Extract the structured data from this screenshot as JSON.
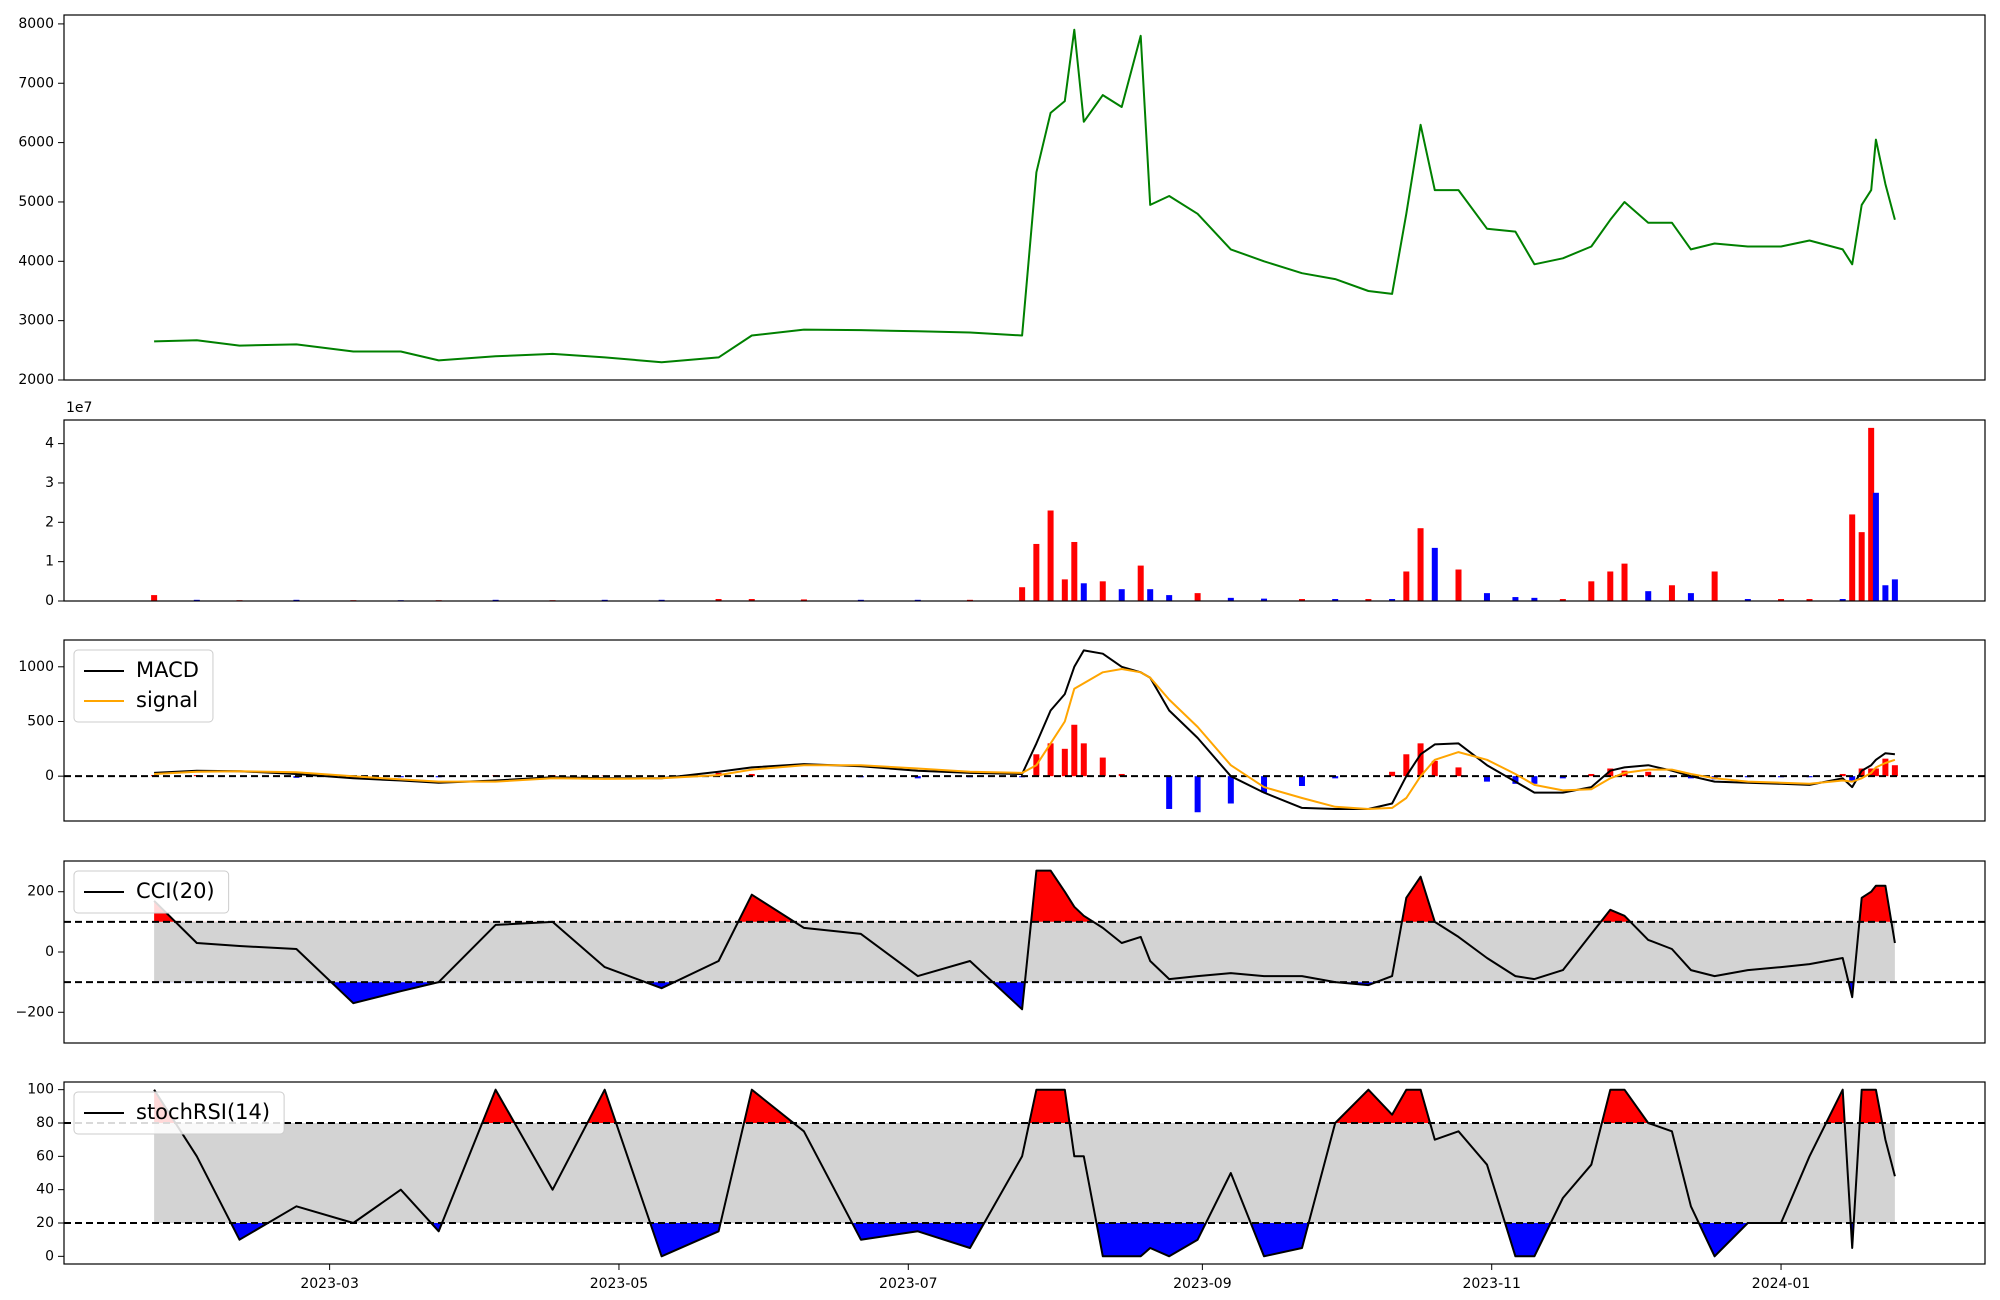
{
  "chart_data": [
    {
      "type": "line",
      "x": [
        "2023-01-23",
        "2023-02-01",
        "2023-02-10",
        "2023-02-22",
        "2023-03-06",
        "2023-03-16",
        "2023-03-24",
        "2023-04-05",
        "2023-04-17",
        "2023-04-28",
        "2023-05-10",
        "2023-05-22",
        "2023-05-29",
        "2023-06-09",
        "2023-06-21",
        "2023-07-03",
        "2023-07-14",
        "2023-07-25",
        "2023-07-28",
        "2023-07-31",
        "2023-08-03",
        "2023-08-05",
        "2023-08-07",
        "2023-08-11",
        "2023-08-15",
        "2023-08-19",
        "2023-08-21",
        "2023-08-25",
        "2023-08-31",
        "2023-09-07",
        "2023-09-14",
        "2023-09-22",
        "2023-09-29",
        "2023-10-06",
        "2023-10-11",
        "2023-10-14",
        "2023-10-17",
        "2023-10-20",
        "2023-10-25",
        "2023-10-31",
        "2023-11-06",
        "2023-11-10",
        "2023-11-16",
        "2023-11-22",
        "2023-11-26",
        "2023-11-29",
        "2023-12-04",
        "2023-12-09",
        "2023-12-13",
        "2023-12-18",
        "2023-12-25",
        "2024-01-01",
        "2024-01-07",
        "2024-01-14",
        "2024-01-16",
        "2024-01-18",
        "2024-01-20",
        "2024-01-21",
        "2024-01-23",
        "2024-01-25"
      ],
      "series": [
        {
          "color": "green",
          "values": [
            2650,
            2670,
            2580,
            2600,
            2480,
            2480,
            2330,
            2400,
            2440,
            2380,
            2300,
            2380,
            2750,
            2850,
            2840,
            2820,
            2800,
            2750,
            5500,
            6500,
            6700,
            7900,
            6350,
            6800,
            6600,
            7800,
            4950,
            5100,
            4800,
            4200,
            4000,
            3800,
            3700,
            3500,
            3450,
            4800,
            6300,
            5200,
            5200,
            4550,
            4500,
            3950,
            4050,
            4250,
            4700,
            5000,
            4650,
            4650,
            4200,
            4300,
            4250,
            4250,
            4350,
            4200,
            3950,
            4950,
            5200,
            6050,
            5300,
            4700
          ]
        }
      ],
      "xlim": [
        "2023-01-04",
        "2024-02-13"
      ],
      "ylim": [
        2000,
        8150
      ],
      "yticks": [
        2000,
        3000,
        4000,
        5000,
        6000,
        7000,
        8000
      ]
    },
    {
      "type": "bar",
      "x": [
        "2023-01-23",
        "2023-02-01",
        "2023-02-10",
        "2023-02-22",
        "2023-03-06",
        "2023-03-16",
        "2023-03-24",
        "2023-04-05",
        "2023-04-17",
        "2023-04-28",
        "2023-05-10",
        "2023-05-22",
        "2023-05-29",
        "2023-06-09",
        "2023-06-21",
        "2023-07-03",
        "2023-07-14",
        "2023-07-25",
        "2023-07-28",
        "2023-07-31",
        "2023-08-03",
        "2023-08-05",
        "2023-08-07",
        "2023-08-11",
        "2023-08-15",
        "2023-08-19",
        "2023-08-21",
        "2023-08-25",
        "2023-08-31",
        "2023-09-07",
        "2023-09-14",
        "2023-09-22",
        "2023-09-29",
        "2023-10-06",
        "2023-10-11",
        "2023-10-14",
        "2023-10-17",
        "2023-10-20",
        "2023-10-25",
        "2023-10-31",
        "2023-11-06",
        "2023-11-10",
        "2023-11-16",
        "2023-11-22",
        "2023-11-26",
        "2023-11-29",
        "2023-12-04",
        "2023-12-09",
        "2023-12-13",
        "2023-12-18",
        "2023-12-25",
        "2024-01-01",
        "2024-01-07",
        "2024-01-14",
        "2024-01-16",
        "2024-01-18",
        "2024-01-20",
        "2024-01-21",
        "2024-01-23",
        "2024-01-25"
      ],
      "values": [
        0.15,
        0.03,
        0.02,
        0.03,
        0.02,
        0.02,
        0.02,
        0.03,
        0.02,
        0.03,
        0.03,
        0.05,
        0.05,
        0.04,
        0.03,
        0.03,
        0.03,
        0.35,
        1.45,
        2.3,
        0.55,
        1.5,
        0.45,
        0.5,
        0.3,
        0.9,
        0.3,
        0.15,
        0.2,
        0.08,
        0.06,
        0.05,
        0.05,
        0.05,
        0.05,
        0.75,
        1.85,
        1.35,
        0.8,
        0.2,
        0.1,
        0.08,
        0.05,
        0.5,
        0.75,
        0.95,
        0.25,
        0.4,
        0.2,
        0.75,
        0.05,
        0.05,
        0.05,
        0.05,
        2.2,
        1.75,
        4.4,
        2.75,
        0.4,
        0.55
      ],
      "colors": [
        "red",
        "blue",
        "red",
        "blue",
        "red",
        "blue",
        "red",
        "blue",
        "red",
        "blue",
        "blue",
        "red",
        "red",
        "red",
        "blue",
        "blue",
        "red",
        "red",
        "red",
        "red",
        "red",
        "red",
        "blue",
        "red",
        "blue",
        "red",
        "blue",
        "blue",
        "red",
        "blue",
        "blue",
        "red",
        "blue",
        "red",
        "blue",
        "red",
        "red",
        "blue",
        "red",
        "blue",
        "blue",
        "blue",
        "red",
        "red",
        "red",
        "red",
        "blue",
        "red",
        "blue",
        "red",
        "blue",
        "red",
        "red",
        "blue",
        "red",
        "red",
        "red",
        "blue",
        "blue",
        "blue"
      ],
      "y_offset_label": "1e7",
      "xlim": [
        "2023-01-04",
        "2024-02-13"
      ],
      "ylim": [
        0,
        4.6
      ],
      "yticks": [
        0,
        1,
        2,
        3,
        4
      ]
    },
    {
      "type": "line",
      "x": [
        "2023-01-23",
        "2023-02-01",
        "2023-02-10",
        "2023-02-22",
        "2023-03-06",
        "2023-03-16",
        "2023-03-24",
        "2023-04-05",
        "2023-04-17",
        "2023-04-28",
        "2023-05-10",
        "2023-05-22",
        "2023-05-29",
        "2023-06-09",
        "2023-06-21",
        "2023-07-03",
        "2023-07-14",
        "2023-07-25",
        "2023-07-28",
        "2023-07-31",
        "2023-08-03",
        "2023-08-05",
        "2023-08-07",
        "2023-08-11",
        "2023-08-15",
        "2023-08-19",
        "2023-08-21",
        "2023-08-25",
        "2023-08-31",
        "2023-09-07",
        "2023-09-14",
        "2023-09-22",
        "2023-09-29",
        "2023-10-06",
        "2023-10-11",
        "2023-10-14",
        "2023-10-17",
        "2023-10-20",
        "2023-10-25",
        "2023-10-31",
        "2023-11-06",
        "2023-11-10",
        "2023-11-16",
        "2023-11-22",
        "2023-11-26",
        "2023-11-29",
        "2023-12-04",
        "2023-12-09",
        "2023-12-13",
        "2023-12-18",
        "2023-12-25",
        "2024-01-01",
        "2024-01-07",
        "2024-01-14",
        "2024-01-16",
        "2024-01-18",
        "2024-01-20",
        "2024-01-21",
        "2024-01-23",
        "2024-01-25"
      ],
      "series": [
        {
          "name": "MACD",
          "color": "black",
          "values": [
            30,
            50,
            45,
            20,
            -20,
            -40,
            -60,
            -40,
            -10,
            -20,
            -20,
            40,
            80,
            110,
            90,
            50,
            30,
            20,
            300,
            600,
            750,
            1000,
            1150,
            1120,
            1000,
            950,
            900,
            600,
            350,
            0,
            -150,
            -290,
            -300,
            -300,
            -250,
            0,
            200,
            290,
            300,
            100,
            -50,
            -150,
            -150,
            -100,
            50,
            80,
            100,
            50,
            0,
            -50,
            -60,
            -70,
            -80,
            -20,
            -100,
            50,
            100,
            150,
            210,
            200
          ]
        },
        {
          "name": "signal",
          "color": "orange",
          "values": [
            20,
            40,
            45,
            35,
            0,
            -30,
            -50,
            -50,
            -20,
            -25,
            -20,
            10,
            60,
            100,
            100,
            70,
            40,
            30,
            100,
            300,
            500,
            800,
            850,
            950,
            980,
            950,
            900,
            700,
            450,
            100,
            -100,
            -200,
            -280,
            -300,
            -290,
            -200,
            0,
            150,
            220,
            150,
            20,
            -80,
            -130,
            -120,
            -20,
            30,
            60,
            60,
            20,
            -20,
            -50,
            -60,
            -70,
            -40,
            -50,
            -20,
            30,
            80,
            120,
            150
          ]
        }
      ],
      "bars": {
        "pos_color": "red",
        "neg_color": "blue",
        "values": [
          10,
          10,
          0,
          -15,
          -20,
          -10,
          -10,
          10,
          10,
          5,
          0,
          30,
          20,
          10,
          -10,
          -20,
          -10,
          -10,
          200,
          300,
          250,
          470,
          300,
          170,
          20,
          0,
          0,
          -300,
          -330,
          -250,
          -150,
          -90,
          -20,
          0,
          40,
          200,
          300,
          140,
          80,
          -50,
          -70,
          -70,
          -20,
          20,
          70,
          50,
          40,
          -10,
          -20,
          -30,
          -10,
          -10,
          -10,
          20,
          -50,
          70,
          70,
          70,
          160,
          100
        ]
      },
      "hlines": [
        0
      ],
      "legend": "upper left",
      "xlim": [
        "2023-01-04",
        "2024-02-13"
      ],
      "ylim": [
        -410,
        1245
      ],
      "yticks": [
        0,
        500,
        1000
      ]
    },
    {
      "type": "line",
      "x": [
        "2023-01-23",
        "2023-02-01",
        "2023-02-10",
        "2023-02-22",
        "2023-03-06",
        "2023-03-16",
        "2023-03-24",
        "2023-04-05",
        "2023-04-17",
        "2023-04-28",
        "2023-05-10",
        "2023-05-22",
        "2023-05-29",
        "2023-06-09",
        "2023-06-21",
        "2023-07-03",
        "2023-07-14",
        "2023-07-25",
        "2023-07-28",
        "2023-07-31",
        "2023-08-03",
        "2023-08-05",
        "2023-08-07",
        "2023-08-11",
        "2023-08-15",
        "2023-08-19",
        "2023-08-21",
        "2023-08-25",
        "2023-08-31",
        "2023-09-07",
        "2023-09-14",
        "2023-09-22",
        "2023-09-29",
        "2023-10-06",
        "2023-10-11",
        "2023-10-14",
        "2023-10-17",
        "2023-10-20",
        "2023-10-25",
        "2023-10-31",
        "2023-11-06",
        "2023-11-10",
        "2023-11-16",
        "2023-11-22",
        "2023-11-26",
        "2023-11-29",
        "2023-12-04",
        "2023-12-09",
        "2023-12-13",
        "2023-12-18",
        "2023-12-25",
        "2024-01-01",
        "2024-01-07",
        "2024-01-14",
        "2024-01-16",
        "2024-01-18",
        "2024-01-20",
        "2024-01-21",
        "2024-01-23",
        "2024-01-25"
      ],
      "series": [
        {
          "name": "CCI(20)",
          "color": "black",
          "values": [
            170,
            30,
            20,
            10,
            -170,
            -130,
            -100,
            90,
            100,
            -50,
            -120,
            -30,
            190,
            80,
            60,
            -80,
            -30,
            -190,
            270,
            270,
            200,
            150,
            120,
            80,
            30,
            50,
            -30,
            -90,
            -80,
            -70,
            -80,
            -80,
            -100,
            -110,
            -80,
            180,
            250,
            100,
            50,
            -20,
            -80,
            -90,
            -60,
            60,
            140,
            120,
            40,
            10,
            -60,
            -80,
            -60,
            -50,
            -40,
            -20,
            -150,
            180,
            200,
            220,
            220,
            30
          ]
        }
      ],
      "bands": {
        "lower": -100,
        "upper": 100,
        "fill": "#d3d3d3",
        "above_color": "red",
        "below_color": "blue"
      },
      "legend": "upper left",
      "xlim": [
        "2023-01-04",
        "2024-02-13"
      ],
      "ylim": [
        -302,
        302
      ],
      "yticks": [
        {
          "value": -200,
          "label": "−200"
        },
        0,
        200
      ]
    },
    {
      "type": "line",
      "x": [
        "2023-01-23",
        "2023-02-01",
        "2023-02-10",
        "2023-02-22",
        "2023-03-06",
        "2023-03-16",
        "2023-03-24",
        "2023-04-05",
        "2023-04-17",
        "2023-04-28",
        "2023-05-10",
        "2023-05-22",
        "2023-05-29",
        "2023-06-09",
        "2023-06-21",
        "2023-07-03",
        "2023-07-14",
        "2023-07-25",
        "2023-07-28",
        "2023-07-31",
        "2023-08-03",
        "2023-08-05",
        "2023-08-07",
        "2023-08-11",
        "2023-08-15",
        "2023-08-19",
        "2023-08-21",
        "2023-08-25",
        "2023-08-31",
        "2023-09-07",
        "2023-09-14",
        "2023-09-22",
        "2023-09-29",
        "2023-10-06",
        "2023-10-11",
        "2023-10-14",
        "2023-10-17",
        "2023-10-20",
        "2023-10-25",
        "2023-10-31",
        "2023-11-06",
        "2023-11-10",
        "2023-11-16",
        "2023-11-22",
        "2023-11-26",
        "2023-11-29",
        "2023-12-04",
        "2023-12-09",
        "2023-12-13",
        "2023-12-18",
        "2023-12-25",
        "2024-01-01",
        "2024-01-07",
        "2024-01-14",
        "2024-01-16",
        "2024-01-18",
        "2024-01-20",
        "2024-01-21",
        "2024-01-23",
        "2024-01-25"
      ],
      "series": [
        {
          "name": "stochRSI(14)",
          "color": "black",
          "values": [
            100,
            60,
            10,
            30,
            20,
            40,
            15,
            100,
            40,
            100,
            0,
            15,
            100,
            75,
            10,
            15,
            5,
            60,
            100,
            100,
            100,
            60,
            60,
            0,
            0,
            0,
            5,
            0,
            10,
            50,
            0,
            5,
            80,
            100,
            85,
            100,
            100,
            70,
            75,
            55,
            0,
            0,
            35,
            55,
            100,
            100,
            80,
            75,
            30,
            0,
            20,
            20,
            60,
            100,
            5,
            100,
            100,
            100,
            70,
            48
          ]
        }
      ],
      "bands": {
        "lower": 20,
        "upper": 80,
        "fill": "#d3d3d3",
        "above_color": "red",
        "below_color": "blue"
      },
      "legend": "upper left",
      "xlim": [
        "2023-01-04",
        "2024-02-13"
      ],
      "ylim": [
        -4.6,
        104.6
      ],
      "yticks": [
        0,
        20,
        40,
        60,
        80,
        100
      ],
      "xticks": [
        {
          "value": "2023-03-01",
          "label": "2023-03"
        },
        {
          "value": "2023-05-01",
          "label": "2023-05"
        },
        {
          "value": "2023-07-01",
          "label": "2023-07"
        },
        {
          "value": "2023-09-01",
          "label": "2023-09"
        },
        {
          "value": "2023-11-01",
          "label": "2023-11"
        },
        {
          "value": "2024-01-01",
          "label": "2024-01"
        }
      ]
    }
  ]
}
